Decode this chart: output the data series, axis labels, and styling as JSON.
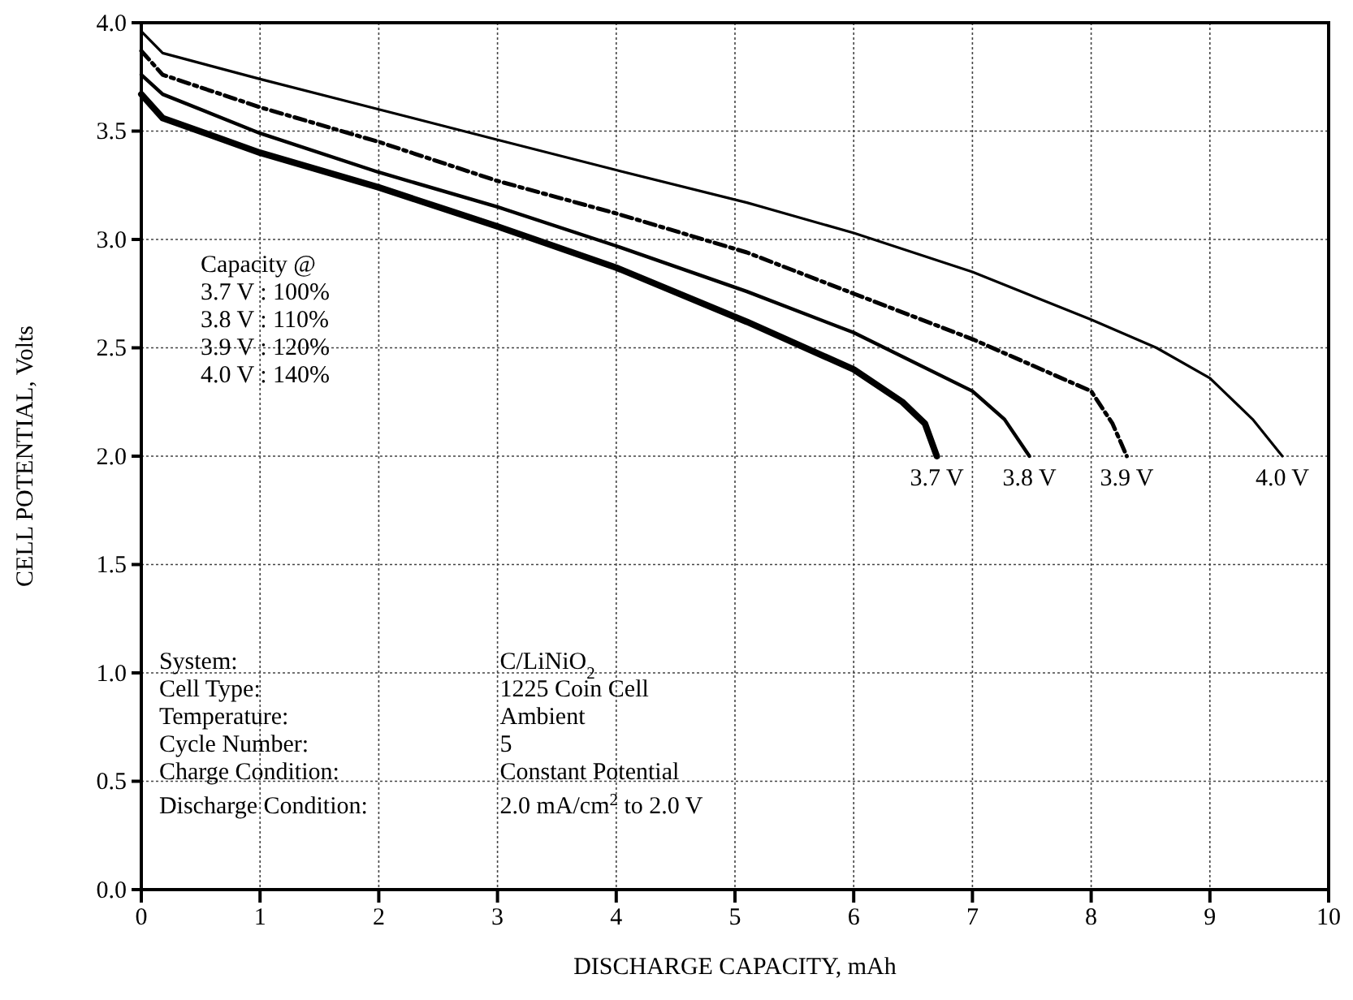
{
  "chart_data": {
    "type": "line",
    "xlabel": "DISCHARGE CAPACITY, mAh",
    "ylabel": "CELL POTENTIAL, Volts",
    "xlim": [
      0,
      10
    ],
    "xticks": [
      0,
      1,
      2,
      3,
      4,
      5,
      6,
      7,
      8,
      9,
      10
    ],
    "ylim": [
      0,
      4
    ],
    "yticks": [
      {
        "value": 0,
        "label": "0.0"
      },
      {
        "value": 0.5,
        "label": "0.5"
      },
      {
        "value": 1,
        "label": "1.0"
      },
      {
        "value": 1.5,
        "label": "1.5"
      },
      {
        "value": 2,
        "label": "2.0"
      },
      {
        "value": 2.5,
        "label": "2.5"
      },
      {
        "value": 3,
        "label": "3.0"
      },
      {
        "value": 3.5,
        "label": "3.5"
      },
      {
        "value": 4,
        "label": "4.0"
      }
    ],
    "grid": true,
    "marker": "none",
    "series": [
      {
        "name": "3.7 V",
        "color": "#000000",
        "line_style": "solid",
        "x": [
          0,
          0.18,
          1,
          2,
          3,
          4,
          5.1,
          6,
          6.41,
          6.6,
          6.7
        ],
        "values": [
          3.67,
          3.56,
          3.4,
          3.24,
          3.06,
          2.87,
          2.62,
          2.4,
          2.25,
          2.15,
          2.0
        ]
      },
      {
        "name": "3.8 V",
        "color": "#000000",
        "line_style": "solid",
        "x": [
          0,
          0.18,
          1,
          2,
          3,
          4,
          5.1,
          6,
          7,
          7.27,
          7.48
        ],
        "values": [
          3.76,
          3.67,
          3.49,
          3.31,
          3.15,
          2.97,
          2.76,
          2.57,
          2.3,
          2.17,
          2.0
        ]
      },
      {
        "name": "3.9 V",
        "color": "#000000",
        "line_style": "dashed",
        "x": [
          0,
          0.18,
          1,
          2,
          3,
          4,
          5.1,
          6,
          7,
          8,
          8.18,
          8.3
        ],
        "values": [
          3.87,
          3.76,
          3.61,
          3.45,
          3.27,
          3.12,
          2.94,
          2.75,
          2.54,
          2.3,
          2.15,
          2.0
        ]
      },
      {
        "name": "4.0 V",
        "color": "#000000",
        "line_style": "solid",
        "x": [
          0,
          0.18,
          1,
          2,
          3,
          4,
          5.1,
          6,
          7,
          8,
          8.55,
          9,
          9.36,
          9.61
        ],
        "values": [
          3.96,
          3.86,
          3.74,
          3.6,
          3.46,
          3.32,
          3.17,
          3.03,
          2.85,
          2.63,
          2.5,
          2.36,
          2.17,
          2.0
        ]
      }
    ],
    "annotations": [
      "Capacity @\n3.7 V : 100%\n3.8 V : 110%\n3.9 V : 120%\n4.0 V : 140%",
      "System:",
      "C/LiNiO$_{2}$",
      "Cell Type:",
      "1225 Coin Cell",
      "Temperature:",
      "Ambient",
      "Cycle Number:",
      "5",
      "Charge Condition:",
      "Constant Potential",
      "Discharge Condition:",
      "2.0 mA/cm$^{2}$ to 2.0 V"
    ]
  }
}
